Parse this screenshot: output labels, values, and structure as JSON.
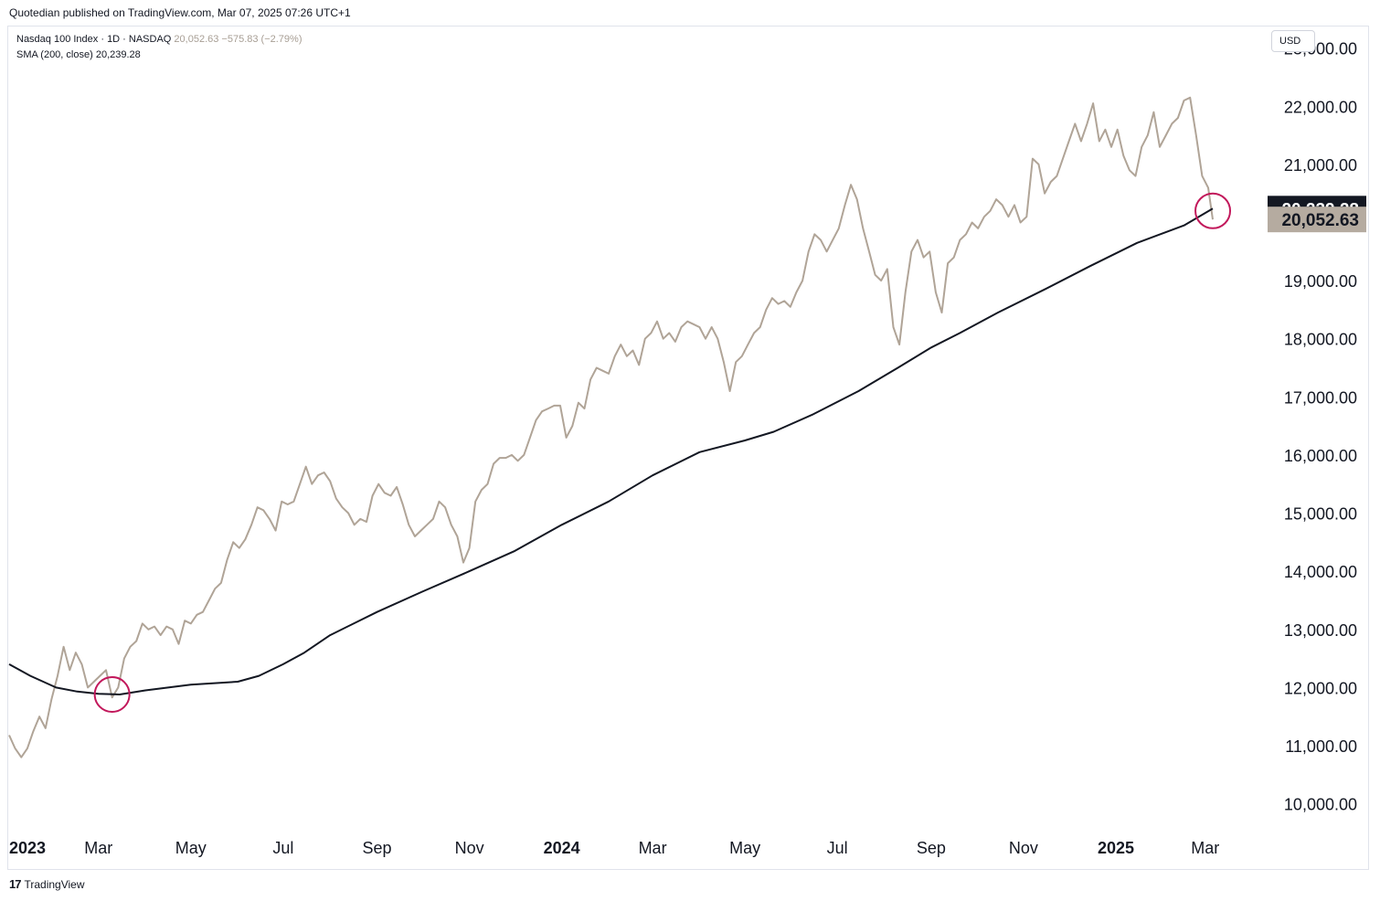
{
  "header": {
    "publisher_line": "Quotedian published on TradingView.com, Mar 07, 2025 07:26 UTC+1"
  },
  "legend": {
    "symbol": "Nasdaq 100 Index · 1D · NASDAQ",
    "last": "20,052.63",
    "change": "−575.83 (−2.79%)",
    "sma_label": "SMA (200, close)",
    "sma_value": "20,239.28"
  },
  "currency": "USD",
  "footer": {
    "brand": "TradingView"
  },
  "colors": {
    "price": "#b0a497",
    "sma": "#131722",
    "circle": "#c2185b",
    "sma_badge": "#131722",
    "price_badge": "#b5aba0"
  },
  "chart_data": {
    "type": "line",
    "ylim": [
      9600,
      23200
    ],
    "xlim": [
      "2023-01-01",
      "2025-04-10"
    ],
    "yticks": [
      {
        "value": 10000,
        "label": "10,000.00"
      },
      {
        "value": 11000,
        "label": "11,000.00"
      },
      {
        "value": 12000,
        "label": "12,000.00"
      },
      {
        "value": 13000,
        "label": "13,000.00"
      },
      {
        "value": 14000,
        "label": "14,000.00"
      },
      {
        "value": 15000,
        "label": "15,000.00"
      },
      {
        "value": 16000,
        "label": "16,000.00"
      },
      {
        "value": 17000,
        "label": "17,000.00"
      },
      {
        "value": 18000,
        "label": "18,000.00"
      },
      {
        "value": 19000,
        "label": "19,000.00"
      },
      {
        "value": 21000,
        "label": "21,000.00"
      },
      {
        "value": 22000,
        "label": "22,000.00"
      },
      {
        "value": 23000,
        "label": "23,000.00"
      }
    ],
    "xticks": [
      {
        "date": "2023-01-01",
        "label": "2023",
        "bold": true
      },
      {
        "date": "2023-03-01",
        "label": "Mar"
      },
      {
        "date": "2023-05-01",
        "label": "May"
      },
      {
        "date": "2023-07-01",
        "label": "Jul"
      },
      {
        "date": "2023-09-01",
        "label": "Sep"
      },
      {
        "date": "2023-11-01",
        "label": "Nov"
      },
      {
        "date": "2024-01-01",
        "label": "2024",
        "bold": true
      },
      {
        "date": "2024-03-01",
        "label": "Mar"
      },
      {
        "date": "2024-05-01",
        "label": "May"
      },
      {
        "date": "2024-07-01",
        "label": "Jul"
      },
      {
        "date": "2024-09-01",
        "label": "Sep"
      },
      {
        "date": "2024-11-01",
        "label": "Nov"
      },
      {
        "date": "2025-01-01",
        "label": "2025",
        "bold": true
      },
      {
        "date": "2025-03-01",
        "label": "Mar"
      }
    ],
    "series": [
      {
        "name": "Nasdaq 100 Index",
        "points": [
          [
            "2023-01-01",
            11180
          ],
          [
            "2023-01-05",
            10950
          ],
          [
            "2023-01-09",
            10800
          ],
          [
            "2023-01-13",
            10950
          ],
          [
            "2023-01-17",
            11250
          ],
          [
            "2023-01-21",
            11500
          ],
          [
            "2023-01-25",
            11300
          ],
          [
            "2023-01-29",
            11800
          ],
          [
            "2023-02-02",
            12200
          ],
          [
            "2023-02-06",
            12700
          ],
          [
            "2023-02-10",
            12300
          ],
          [
            "2023-02-14",
            12600
          ],
          [
            "2023-02-18",
            12400
          ],
          [
            "2023-02-22",
            12000
          ],
          [
            "2023-02-26",
            12100
          ],
          [
            "2023-03-02",
            12200
          ],
          [
            "2023-03-06",
            12300
          ],
          [
            "2023-03-10",
            11830
          ],
          [
            "2023-03-14",
            12000
          ],
          [
            "2023-03-18",
            12500
          ],
          [
            "2023-03-22",
            12700
          ],
          [
            "2023-03-26",
            12800
          ],
          [
            "2023-03-30",
            13100
          ],
          [
            "2023-04-03",
            13000
          ],
          [
            "2023-04-07",
            13050
          ],
          [
            "2023-04-11",
            12900
          ],
          [
            "2023-04-15",
            13050
          ],
          [
            "2023-04-19",
            13000
          ],
          [
            "2023-04-23",
            12750
          ],
          [
            "2023-04-27",
            13150
          ],
          [
            "2023-05-01",
            13100
          ],
          [
            "2023-05-05",
            13250
          ],
          [
            "2023-05-09",
            13300
          ],
          [
            "2023-05-13",
            13500
          ],
          [
            "2023-05-17",
            13700
          ],
          [
            "2023-05-21",
            13800
          ],
          [
            "2023-05-25",
            14200
          ],
          [
            "2023-05-29",
            14500
          ],
          [
            "2023-06-02",
            14400
          ],
          [
            "2023-06-06",
            14550
          ],
          [
            "2023-06-10",
            14800
          ],
          [
            "2023-06-14",
            15100
          ],
          [
            "2023-06-18",
            15050
          ],
          [
            "2023-06-22",
            14900
          ],
          [
            "2023-06-26",
            14700
          ],
          [
            "2023-06-30",
            15200
          ],
          [
            "2023-07-04",
            15150
          ],
          [
            "2023-07-08",
            15200
          ],
          [
            "2023-07-12",
            15500
          ],
          [
            "2023-07-16",
            15800
          ],
          [
            "2023-07-20",
            15500
          ],
          [
            "2023-07-24",
            15650
          ],
          [
            "2023-07-28",
            15700
          ],
          [
            "2023-08-01",
            15550
          ],
          [
            "2023-08-05",
            15250
          ],
          [
            "2023-08-09",
            15100
          ],
          [
            "2023-08-13",
            15000
          ],
          [
            "2023-08-17",
            14800
          ],
          [
            "2023-08-21",
            14900
          ],
          [
            "2023-08-25",
            14850
          ],
          [
            "2023-08-29",
            15300
          ],
          [
            "2023-09-02",
            15500
          ],
          [
            "2023-09-06",
            15350
          ],
          [
            "2023-09-10",
            15300
          ],
          [
            "2023-09-14",
            15450
          ],
          [
            "2023-09-18",
            15150
          ],
          [
            "2023-09-22",
            14800
          ],
          [
            "2023-09-26",
            14600
          ],
          [
            "2023-09-30",
            14700
          ],
          [
            "2023-10-04",
            14800
          ],
          [
            "2023-10-08",
            14900
          ],
          [
            "2023-10-12",
            15200
          ],
          [
            "2023-10-16",
            15100
          ],
          [
            "2023-10-20",
            14800
          ],
          [
            "2023-10-24",
            14600
          ],
          [
            "2023-10-28",
            14150
          ],
          [
            "2023-11-01",
            14400
          ],
          [
            "2023-11-05",
            15200
          ],
          [
            "2023-11-09",
            15400
          ],
          [
            "2023-11-13",
            15500
          ],
          [
            "2023-11-17",
            15850
          ],
          [
            "2023-11-21",
            15950
          ],
          [
            "2023-11-25",
            15950
          ],
          [
            "2023-11-29",
            16000
          ],
          [
            "2023-12-03",
            15900
          ],
          [
            "2023-12-07",
            16000
          ],
          [
            "2023-12-11",
            16300
          ],
          [
            "2023-12-15",
            16600
          ],
          [
            "2023-12-19",
            16750
          ],
          [
            "2023-12-23",
            16800
          ],
          [
            "2023-12-27",
            16850
          ],
          [
            "2023-12-31",
            16850
          ],
          [
            "2024-01-04",
            16300
          ],
          [
            "2024-01-08",
            16500
          ],
          [
            "2024-01-12",
            16900
          ],
          [
            "2024-01-16",
            16800
          ],
          [
            "2024-01-20",
            17300
          ],
          [
            "2024-01-24",
            17500
          ],
          [
            "2024-01-28",
            17450
          ],
          [
            "2024-02-01",
            17400
          ],
          [
            "2024-02-05",
            17700
          ],
          [
            "2024-02-09",
            17900
          ],
          [
            "2024-02-13",
            17700
          ],
          [
            "2024-02-17",
            17800
          ],
          [
            "2024-02-21",
            17550
          ],
          [
            "2024-02-25",
            18000
          ],
          [
            "2024-02-29",
            18100
          ],
          [
            "2024-03-04",
            18300
          ],
          [
            "2024-03-08",
            18000
          ],
          [
            "2024-03-12",
            18100
          ],
          [
            "2024-03-16",
            17950
          ],
          [
            "2024-03-20",
            18200
          ],
          [
            "2024-03-24",
            18300
          ],
          [
            "2024-03-28",
            18250
          ],
          [
            "2024-04-01",
            18200
          ],
          [
            "2024-04-05",
            18000
          ],
          [
            "2024-04-09",
            18200
          ],
          [
            "2024-04-13",
            18000
          ],
          [
            "2024-04-17",
            17600
          ],
          [
            "2024-04-21",
            17100
          ],
          [
            "2024-04-25",
            17600
          ],
          [
            "2024-04-29",
            17700
          ],
          [
            "2024-05-03",
            17900
          ],
          [
            "2024-05-07",
            18100
          ],
          [
            "2024-05-11",
            18200
          ],
          [
            "2024-05-15",
            18500
          ],
          [
            "2024-05-19",
            18700
          ],
          [
            "2024-05-23",
            18600
          ],
          [
            "2024-05-27",
            18650
          ],
          [
            "2024-05-31",
            18550
          ],
          [
            "2024-06-04",
            18800
          ],
          [
            "2024-06-08",
            19000
          ],
          [
            "2024-06-12",
            19500
          ],
          [
            "2024-06-16",
            19800
          ],
          [
            "2024-06-20",
            19700
          ],
          [
            "2024-06-24",
            19500
          ],
          [
            "2024-06-28",
            19700
          ],
          [
            "2024-07-02",
            19900
          ],
          [
            "2024-07-06",
            20300
          ],
          [
            "2024-07-10",
            20650
          ],
          [
            "2024-07-14",
            20400
          ],
          [
            "2024-07-18",
            19900
          ],
          [
            "2024-07-22",
            19500
          ],
          [
            "2024-07-26",
            19100
          ],
          [
            "2024-07-30",
            19000
          ],
          [
            "2024-08-03",
            19200
          ],
          [
            "2024-08-07",
            18200
          ],
          [
            "2024-08-11",
            17900
          ],
          [
            "2024-08-15",
            18800
          ],
          [
            "2024-08-19",
            19500
          ],
          [
            "2024-08-23",
            19700
          ],
          [
            "2024-08-27",
            19400
          ],
          [
            "2024-08-31",
            19500
          ],
          [
            "2024-09-04",
            18800
          ],
          [
            "2024-09-08",
            18450
          ],
          [
            "2024-09-12",
            19300
          ],
          [
            "2024-09-16",
            19400
          ],
          [
            "2024-09-20",
            19700
          ],
          [
            "2024-09-24",
            19800
          ],
          [
            "2024-09-28",
            20000
          ],
          [
            "2024-10-02",
            19900
          ],
          [
            "2024-10-06",
            20100
          ],
          [
            "2024-10-10",
            20200
          ],
          [
            "2024-10-14",
            20400
          ],
          [
            "2024-10-18",
            20300
          ],
          [
            "2024-10-22",
            20100
          ],
          [
            "2024-10-26",
            20300
          ],
          [
            "2024-10-30",
            20000
          ],
          [
            "2024-11-03",
            20100
          ],
          [
            "2024-11-07",
            21100
          ],
          [
            "2024-11-11",
            21000
          ],
          [
            "2024-11-15",
            20500
          ],
          [
            "2024-11-19",
            20700
          ],
          [
            "2024-11-23",
            20800
          ],
          [
            "2024-11-27",
            21100
          ],
          [
            "2024-12-01",
            21400
          ],
          [
            "2024-12-05",
            21700
          ],
          [
            "2024-12-09",
            21400
          ],
          [
            "2024-12-13",
            21700
          ],
          [
            "2024-12-17",
            22050
          ],
          [
            "2024-12-21",
            21400
          ],
          [
            "2024-12-25",
            21600
          ],
          [
            "2024-12-29",
            21300
          ],
          [
            "2025-01-02",
            21600
          ],
          [
            "2025-01-06",
            21150
          ],
          [
            "2025-01-10",
            20900
          ],
          [
            "2025-01-14",
            20800
          ],
          [
            "2025-01-18",
            21300
          ],
          [
            "2025-01-22",
            21500
          ],
          [
            "2025-01-26",
            21900
          ],
          [
            "2025-01-30",
            21300
          ],
          [
            "2025-02-03",
            21500
          ],
          [
            "2025-02-07",
            21700
          ],
          [
            "2025-02-11",
            21800
          ],
          [
            "2025-02-15",
            22100
          ],
          [
            "2025-02-19",
            22150
          ],
          [
            "2025-02-23",
            21500
          ],
          [
            "2025-02-27",
            20800
          ],
          [
            "2025-03-03",
            20600
          ],
          [
            "2025-03-06",
            20052.63
          ]
        ]
      },
      {
        "name": "SMA (200, close)",
        "points": [
          [
            "2023-01-01",
            12400
          ],
          [
            "2023-01-15",
            12200
          ],
          [
            "2023-02-01",
            12000
          ],
          [
            "2023-02-15",
            11930
          ],
          [
            "2023-03-01",
            11890
          ],
          [
            "2023-03-15",
            11880
          ],
          [
            "2023-04-01",
            11950
          ],
          [
            "2023-05-01",
            12050
          ],
          [
            "2023-06-01",
            12100
          ],
          [
            "2023-06-15",
            12200
          ],
          [
            "2023-07-01",
            12400
          ],
          [
            "2023-07-15",
            12600
          ],
          [
            "2023-08-01",
            12900
          ],
          [
            "2023-09-01",
            13300
          ],
          [
            "2023-10-01",
            13650
          ],
          [
            "2023-11-01",
            14000
          ],
          [
            "2023-12-01",
            14350
          ],
          [
            "2024-01-01",
            14800
          ],
          [
            "2024-02-01",
            15200
          ],
          [
            "2024-03-01",
            15650
          ],
          [
            "2024-04-01",
            16050
          ],
          [
            "2024-05-01",
            16250
          ],
          [
            "2024-05-20",
            16400
          ],
          [
            "2024-06-15",
            16700
          ],
          [
            "2024-07-15",
            17100
          ],
          [
            "2024-08-10",
            17500
          ],
          [
            "2024-09-01",
            17850
          ],
          [
            "2024-09-20",
            18100
          ],
          [
            "2024-10-15",
            18450
          ],
          [
            "2024-11-15",
            18850
          ],
          [
            "2024-12-15",
            19250
          ],
          [
            "2025-01-15",
            19650
          ],
          [
            "2025-02-15",
            19950
          ],
          [
            "2025-03-06",
            20239.28
          ]
        ]
      }
    ],
    "last_price": {
      "value": 20052.63,
      "label": "20,052.63"
    },
    "last_sma": {
      "value": 20239.28,
      "label": "20,239.28"
    },
    "annotations": [
      {
        "type": "circle",
        "date": "2023-03-10",
        "value": 11880
      },
      {
        "type": "circle",
        "date": "2025-03-06",
        "value": 20200
      }
    ]
  }
}
